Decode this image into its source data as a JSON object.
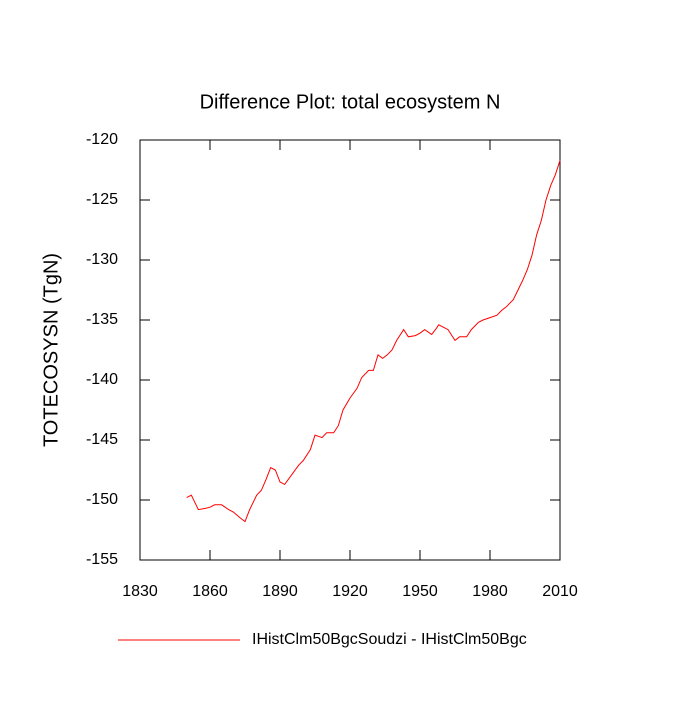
{
  "chart_data": {
    "type": "line",
    "title": "Difference Plot: total ecosystem N",
    "y_label": "TOTECOSYSN  (TgN)",
    "x": [
      1850,
      1852,
      1854,
      1855,
      1858,
      1860,
      1862,
      1865,
      1868,
      1870,
      1873,
      1875,
      1877,
      1880,
      1882,
      1884,
      1886,
      1888,
      1890,
      1892,
      1895,
      1898,
      1900,
      1903,
      1905,
      1908,
      1910,
      1913,
      1915,
      1917,
      1920,
      1923,
      1925,
      1928,
      1930,
      1932,
      1934,
      1936,
      1938,
      1940,
      1943,
      1945,
      1948,
      1950,
      1952,
      1955,
      1957,
      1958,
      1960,
      1962,
      1965,
      1967,
      1970,
      1972,
      1975,
      1977,
      1980,
      1983,
      1985,
      1987,
      1990,
      1992,
      1994,
      1996,
      1998,
      2000,
      2002,
      2004,
      2006,
      2008,
      2010
    ],
    "series": [
      {
        "name": "IHistClm50BgcSoudzi - IHistClm50Bgc",
        "color": "#ff0000",
        "values": [
          -149.8,
          -149.6,
          -150.4,
          -150.8,
          -150.7,
          -150.6,
          -150.4,
          -150.4,
          -150.8,
          -151.0,
          -151.5,
          -151.8,
          -150.8,
          -149.6,
          -149.2,
          -148.3,
          -147.3,
          -147.5,
          -148.5,
          -148.7,
          -147.9,
          -147.1,
          -146.7,
          -145.8,
          -144.6,
          -144.8,
          -144.4,
          -144.4,
          -143.8,
          -142.5,
          -141.5,
          -140.7,
          -139.8,
          -139.2,
          -139.2,
          -137.9,
          -138.2,
          -137.9,
          -137.5,
          -136.7,
          -135.8,
          -136.4,
          -136.3,
          -136.1,
          -135.8,
          -136.2,
          -135.7,
          -135.4,
          -135.6,
          -135.8,
          -136.7,
          -136.4,
          -136.4,
          -135.8,
          -135.2,
          -135.0,
          -134.8,
          -134.6,
          -134.2,
          -133.9,
          -133.3,
          -132.5,
          -131.7,
          -130.8,
          -129.6,
          -127.9,
          -126.7,
          -125.0,
          -123.8,
          -122.9,
          -121.7
        ]
      }
    ],
    "xlim": [
      1830,
      2010
    ],
    "xticks": [
      1830,
      1860,
      1890,
      1920,
      1950,
      1980,
      2010
    ],
    "ylim": [
      -155,
      -120
    ],
    "yticks": [
      -155,
      -150,
      -145,
      -140,
      -135,
      -130,
      -125,
      -120
    ]
  }
}
